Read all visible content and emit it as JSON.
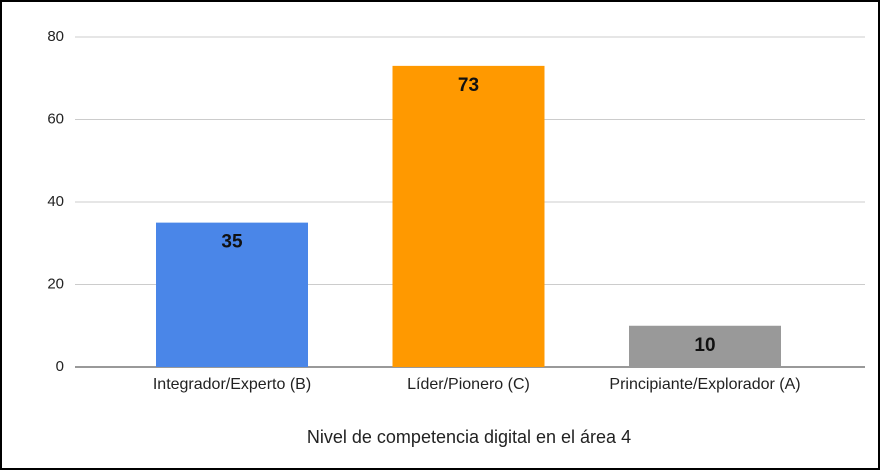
{
  "chart_data": {
    "type": "bar",
    "xlabel": "Nivel de competencia digital en el área 4",
    "categories": [
      "Integrador/Experto (B)",
      "Líder/Pionero (C)",
      "Principiante/Explorador (A)"
    ],
    "values": [
      35,
      73,
      10
    ],
    "colors": [
      "#4a86e8",
      "#ff9900",
      "#999999"
    ],
    "ylim": [
      0,
      80
    ],
    "yticks": [
      0,
      20,
      40,
      60,
      80
    ],
    "grid": true
  }
}
